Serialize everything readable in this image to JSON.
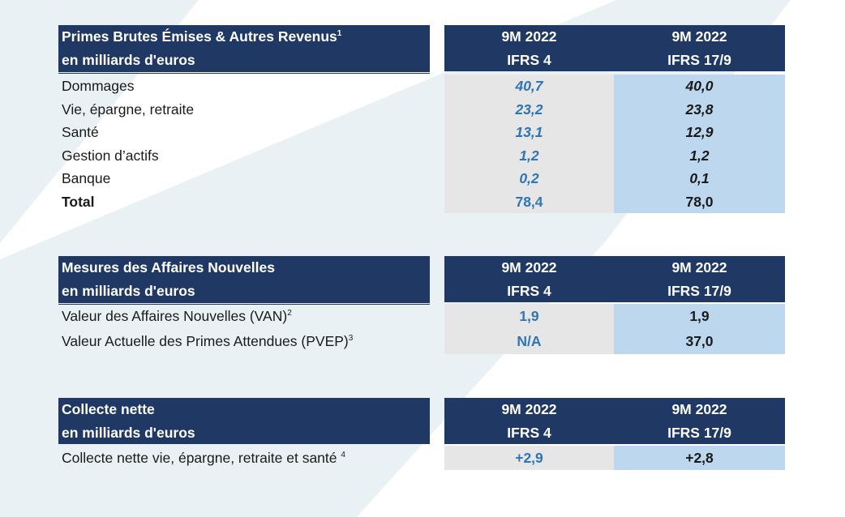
{
  "sections": [
    {
      "title_line1": "Primes Brutes Émises & Autres Revenus",
      "title_sup": "1",
      "title_line2": "en milliards d'euros",
      "col1_line1": "9M 2022",
      "col1_line2": "IFRS 4",
      "col2_line1": "9M 2022",
      "col2_line2": "IFRS 17/9",
      "rows": [
        {
          "label": "Dommages",
          "sup": "",
          "v1": "40,7",
          "v2": "40,0"
        },
        {
          "label": "Vie, épargne, retraite",
          "sup": "",
          "v1": "23,2",
          "v2": "23,8"
        },
        {
          "label": "Santé",
          "sup": "",
          "v1": "13,1",
          "v2": "12,9"
        },
        {
          "label": "Gestion d’actifs",
          "sup": "",
          "v1": "1,2",
          "v2": "1,2"
        },
        {
          "label": "Banque",
          "sup": "",
          "v1": "0,2",
          "v2": "0,1"
        },
        {
          "label": "Total",
          "sup": "",
          "v1": "78,4",
          "v2": "78,0"
        }
      ]
    },
    {
      "title_line1": "Mesures des Affaires Nouvelles",
      "title_sup": "",
      "title_line2": "en milliards d'euros",
      "col1_line1": "9M 2022",
      "col1_line2": "IFRS 4",
      "col2_line1": "9M 2022",
      "col2_line2": "IFRS 17/9",
      "rows": [
        {
          "label": "Valeur des Affaires Nouvelles (VAN)",
          "sup": "2",
          "v1": "1,9",
          "v2": "1,9"
        },
        {
          "label": "Valeur Actuelle des Primes Attendues (PVEP)",
          "sup": "3",
          "v1": "N/A",
          "v2": "37,0"
        }
      ]
    },
    {
      "title_line1": "Collecte nette",
      "title_sup": "",
      "title_line2": "en milliards d'euros",
      "col1_line1": "9M 2022",
      "col1_line2": "IFRS 4",
      "col2_line1": "9M 2022",
      "col2_line2": "IFRS 17/9",
      "rows": [
        {
          "label": "Collecte nette vie, épargne, retraite et santé ",
          "sup": "4",
          "v1": "+2,9",
          "v2": "+2,8"
        }
      ]
    }
  ],
  "colors": {
    "header_bg": "#1f3864",
    "ifrs4_bg": "#e6e6e6",
    "ifrs4_text": "#2e75b6",
    "ifrs17_bg": "#bdd7ee",
    "background_band": "#e8f0f4"
  }
}
